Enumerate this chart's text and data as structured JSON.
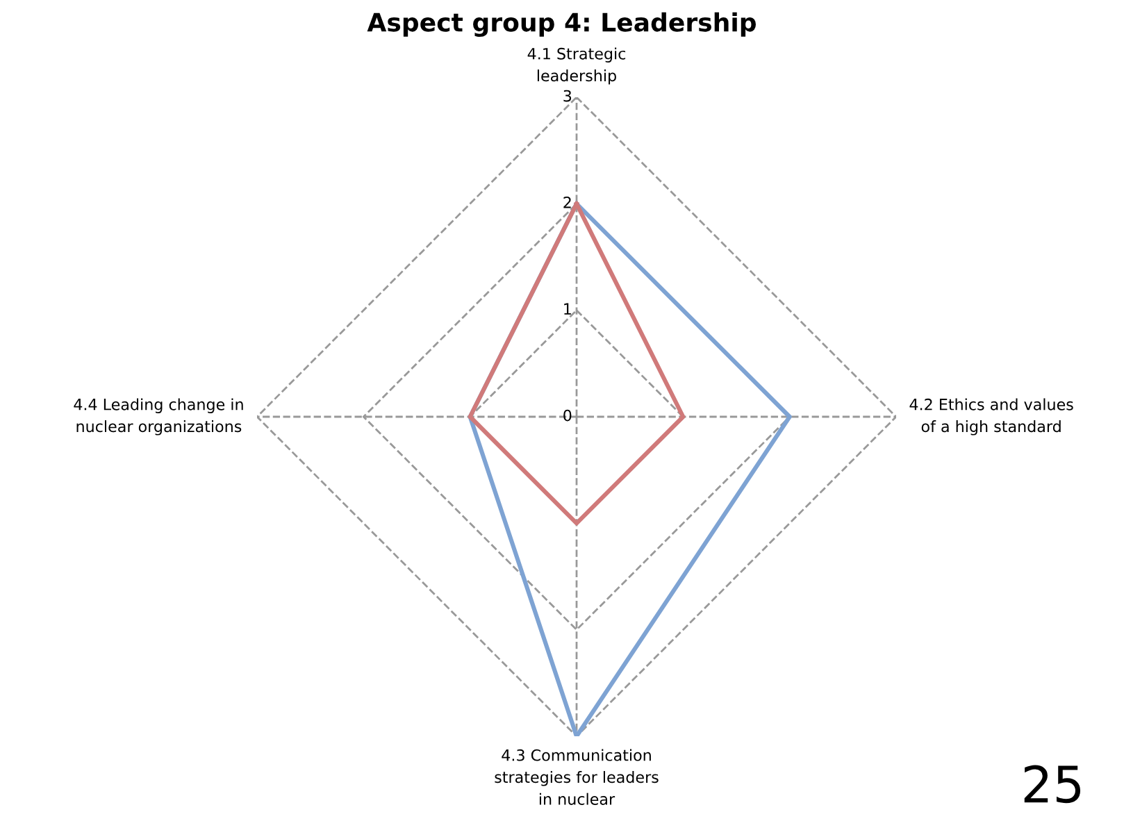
{
  "chart_data": {
    "type": "radar",
    "title": "Aspect group 4: Leadership",
    "categories": [
      "4.1 Strategic\nleadership",
      "4.2 Ethics and values\nof a high standard",
      "4.3 Communication\nstrategies for leaders\nin nuclear",
      "4.4 Leading change in\nnuclear organizations"
    ],
    "series": [
      {
        "color": "#7ea3d3",
        "values": [
          2,
          2,
          3,
          1
        ]
      },
      {
        "color": "#d07a7a",
        "values": [
          2,
          1,
          1,
          1
        ]
      }
    ],
    "ylim": [
      0,
      3
    ],
    "yticks": [
      0,
      1,
      2,
      3
    ],
    "grid": true,
    "line_style": "solid",
    "legend": false,
    "annotations": [
      "25"
    ]
  }
}
